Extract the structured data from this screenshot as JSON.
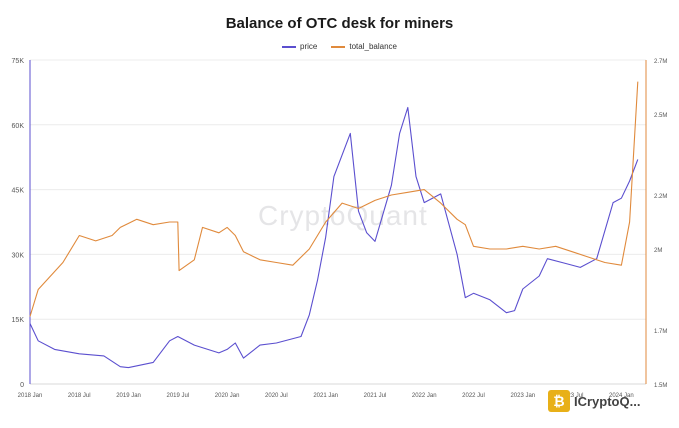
{
  "chart_data": {
    "type": "line",
    "title": "Balance of OTC desk for miners",
    "watermark": "CryptoQuant",
    "badge_text": "ICryptoQ...",
    "x_ticks": [
      "2018 Jan",
      "2018 Jul",
      "2019 Jan",
      "2019 Jul",
      "2020 Jan",
      "2020 Jul",
      "2021 Jan",
      "2021 Jul",
      "2022 Jan",
      "2022 Jul",
      "2023 Jan",
      "2023 Jul",
      "2024 Jan"
    ],
    "y_left": {
      "ticks": [
        "0",
        "15K",
        "30K",
        "45K",
        "60K",
        "75K"
      ],
      "values": [
        0,
        15000,
        30000,
        45000,
        60000,
        75000
      ],
      "ylim": [
        0,
        75000
      ]
    },
    "y_right": {
      "ticks": [
        "1.5M",
        "1.7M",
        "2M",
        "2.2M",
        "2.5M",
        "2.7M"
      ],
      "values": [
        1500000,
        1700000,
        2000000,
        2200000,
        2500000,
        2700000
      ],
      "ylim": [
        1500000,
        2700000
      ]
    },
    "grid": true,
    "legend_position": "top-center",
    "series": [
      {
        "name": "price",
        "color": "#5b4fcf",
        "axis": "left",
        "x": [
          "2018 Jan",
          "2018 Feb",
          "2018 Apr",
          "2018 Jul",
          "2018 Oct",
          "2018 Dec",
          "2019 Jan",
          "2019 Apr",
          "2019 Jun",
          "2019 Jul",
          "2019 Sep",
          "2019 Dec",
          "2020 Jan",
          "2020 Feb",
          "2020 Mar",
          "2020 May",
          "2020 Jul",
          "2020 Oct",
          "2020 Nov",
          "2020 Dec",
          "2021 Jan",
          "2021 Feb",
          "2021 Apr",
          "2021 May",
          "2021 Jun",
          "2021 Jul",
          "2021 Sep",
          "2021 Oct",
          "2021 Nov",
          "2021 Dec",
          "2022 Jan",
          "2022 Mar",
          "2022 May",
          "2022 Jun",
          "2022 Jul",
          "2022 Sep",
          "2022 Nov",
          "2022 Dec",
          "2023 Jan",
          "2023 Mar",
          "2023 Apr",
          "2023 Jun",
          "2023 Aug",
          "2023 Oct",
          "2023 Dec",
          "2024 Jan",
          "2024 Feb",
          "2024 Mar"
        ],
        "values": [
          14000,
          10000,
          8000,
          7000,
          6500,
          4000,
          3800,
          5000,
          10000,
          11000,
          9000,
          7200,
          8000,
          9500,
          6000,
          9000,
          9500,
          11000,
          16000,
          24000,
          34000,
          48000,
          58000,
          40000,
          35000,
          33000,
          46000,
          58000,
          64000,
          48000,
          42000,
          44000,
          30000,
          20000,
          21000,
          19500,
          16500,
          17000,
          22000,
          25000,
          29000,
          28000,
          27000,
          29000,
          42000,
          43000,
          47000,
          52000
        ]
      },
      {
        "name": "total_balance",
        "color": "#e08a3c",
        "axis": "right",
        "x": [
          "2018 Jan",
          "2018 Feb",
          "2018 May",
          "2018 Jul",
          "2018 Sep",
          "2018 Nov",
          "2018 Dec",
          "2019 Feb",
          "2019 Apr",
          "2019 Jun",
          "2019 Jul",
          "2019 Jul",
          "2019 Sep",
          "2019 Oct",
          "2019 Dec",
          "2020 Jan",
          "2020 Feb",
          "2020 Mar",
          "2020 May",
          "2020 Jul",
          "2020 Sep",
          "2020 Nov",
          "2020 Dec",
          "2021 Jan",
          "2021 Mar",
          "2021 May",
          "2021 Jul",
          "2021 Sep",
          "2021 Nov",
          "2022 Jan",
          "2022 Mar",
          "2022 May",
          "2022 Jun",
          "2022 Jul",
          "2022 Sep",
          "2022 Nov",
          "2023 Jan",
          "2023 Mar",
          "2023 May",
          "2023 Jul",
          "2023 Sep",
          "2023 Nov",
          "2024 Jan",
          "2024 Feb",
          "2024 Mar"
        ],
        "values": [
          1750000,
          1850000,
          1950000,
          2050000,
          2030000,
          2050000,
          2080000,
          2110000,
          2090000,
          2100000,
          2100000,
          1920000,
          1960000,
          2080000,
          2060000,
          2080000,
          2050000,
          1990000,
          1960000,
          1950000,
          1940000,
          2000000,
          2050000,
          2100000,
          2170000,
          2150000,
          2180000,
          2200000,
          2210000,
          2220000,
          2170000,
          2110000,
          2090000,
          2010000,
          2000000,
          2000000,
          2010000,
          2000000,
          2010000,
          1990000,
          1970000,
          1950000,
          1940000,
          2100000,
          2620000
        ]
      }
    ]
  }
}
